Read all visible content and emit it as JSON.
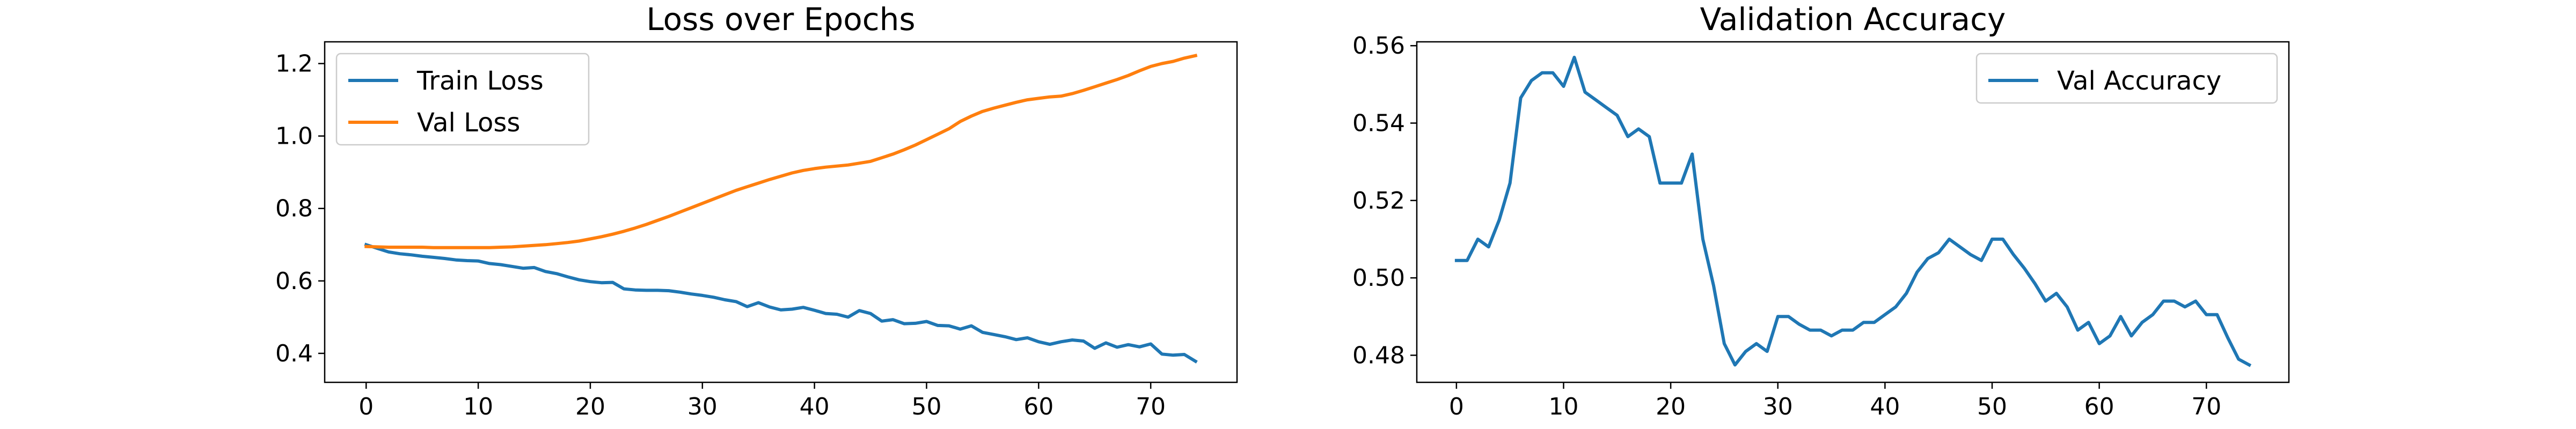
{
  "chart_data": [
    {
      "type": "line",
      "title": "Loss over Epochs",
      "xlabel": "",
      "ylabel": "",
      "xlim": [
        -3.7,
        77.7
      ],
      "ylim": [
        0.32,
        1.26
      ],
      "xticks": [
        0,
        10,
        20,
        30,
        40,
        50,
        60,
        70
      ],
      "yticks": [
        0.4,
        0.6,
        0.8,
        1.0,
        1.2
      ],
      "ytick_labels": [
        "0.4",
        "0.6",
        "0.8",
        "1.0",
        "1.2"
      ],
      "grid": false,
      "legend_position": "upper-left",
      "series": [
        {
          "name": "Train Loss",
          "color": "#1f77b4",
          "x": [
            0,
            1,
            2,
            3,
            4,
            5,
            6,
            7,
            8,
            9,
            10,
            11,
            12,
            13,
            14,
            15,
            16,
            17,
            18,
            19,
            20,
            21,
            22,
            23,
            24,
            25,
            26,
            27,
            28,
            29,
            30,
            31,
            32,
            33,
            34,
            35,
            36,
            37,
            38,
            39,
            40,
            41,
            42,
            43,
            44,
            45,
            46,
            47,
            48,
            49,
            50,
            51,
            52,
            53,
            54,
            55,
            56,
            57,
            58,
            59,
            60,
            61,
            62,
            63,
            64,
            65,
            66,
            67,
            68,
            69,
            70,
            71,
            72,
            73,
            74
          ],
          "values": [
            0.7,
            0.69,
            0.68,
            0.675,
            0.672,
            0.668,
            0.665,
            0.662,
            0.658,
            0.656,
            0.655,
            0.648,
            0.645,
            0.64,
            0.635,
            0.637,
            0.626,
            0.62,
            0.611,
            0.603,
            0.598,
            0.595,
            0.596,
            0.578,
            0.575,
            0.574,
            0.574,
            0.573,
            0.569,
            0.564,
            0.56,
            0.555,
            0.548,
            0.543,
            0.529,
            0.54,
            0.528,
            0.52,
            0.522,
            0.527,
            0.519,
            0.51,
            0.508,
            0.5,
            0.518,
            0.51,
            0.489,
            0.493,
            0.482,
            0.483,
            0.488,
            0.477,
            0.476,
            0.467,
            0.476,
            0.458,
            0.452,
            0.446,
            0.438,
            0.443,
            0.432,
            0.425,
            0.432,
            0.437,
            0.434,
            0.414,
            0.429,
            0.417,
            0.424,
            0.418,
            0.426,
            0.398,
            0.395,
            0.397,
            0.378
          ]
        },
        {
          "name": "Val Loss",
          "color": "#ff7f0e",
          "x": [
            0,
            1,
            2,
            3,
            4,
            5,
            6,
            7,
            8,
            9,
            10,
            11,
            12,
            13,
            14,
            15,
            16,
            17,
            18,
            19,
            20,
            21,
            22,
            23,
            24,
            25,
            26,
            27,
            28,
            29,
            30,
            31,
            32,
            33,
            34,
            35,
            36,
            37,
            38,
            39,
            40,
            41,
            42,
            43,
            44,
            45,
            46,
            47,
            48,
            49,
            50,
            51,
            52,
            53,
            54,
            55,
            56,
            57,
            58,
            59,
            60,
            61,
            62,
            63,
            64,
            65,
            66,
            67,
            68,
            69,
            70,
            71,
            72,
            73,
            74
          ],
          "values": [
            0.695,
            0.694,
            0.693,
            0.693,
            0.693,
            0.693,
            0.692,
            0.692,
            0.692,
            0.692,
            0.692,
            0.692,
            0.693,
            0.694,
            0.696,
            0.698,
            0.7,
            0.703,
            0.706,
            0.71,
            0.716,
            0.722,
            0.729,
            0.737,
            0.746,
            0.756,
            0.767,
            0.778,
            0.79,
            0.802,
            0.814,
            0.826,
            0.838,
            0.85,
            0.86,
            0.87,
            0.88,
            0.889,
            0.898,
            0.905,
            0.91,
            0.914,
            0.917,
            0.92,
            0.925,
            0.93,
            0.94,
            0.95,
            0.962,
            0.975,
            0.99,
            1.005,
            1.02,
            1.04,
            1.055,
            1.068,
            1.077,
            1.085,
            1.093,
            1.1,
            1.104,
            1.108,
            1.11,
            1.117,
            1.126,
            1.136,
            1.146,
            1.156,
            1.167,
            1.18,
            1.192,
            1.2,
            1.206,
            1.215,
            1.222
          ]
        }
      ]
    },
    {
      "type": "line",
      "title": "Validation Accuracy",
      "xlabel": "",
      "ylabel": "",
      "xlim": [
        -3.7,
        77.7
      ],
      "ylim": [
        0.473,
        0.561
      ],
      "xticks": [
        0,
        10,
        20,
        30,
        40,
        50,
        60,
        70
      ],
      "yticks": [
        0.48,
        0.5,
        0.52,
        0.54,
        0.56
      ],
      "ytick_labels": [
        "0.48",
        "0.50",
        "0.52",
        "0.54",
        "0.56"
      ],
      "grid": false,
      "legend_position": "upper-right",
      "series": [
        {
          "name": "Val Accuracy",
          "color": "#1f77b4",
          "x": [
            0,
            1,
            2,
            3,
            4,
            5,
            6,
            7,
            8,
            9,
            10,
            11,
            12,
            13,
            14,
            15,
            16,
            17,
            18,
            19,
            20,
            21,
            22,
            23,
            24,
            25,
            26,
            27,
            28,
            29,
            30,
            31,
            32,
            33,
            34,
            35,
            36,
            37,
            38,
            39,
            40,
            41,
            42,
            43,
            44,
            45,
            46,
            47,
            48,
            49,
            50,
            51,
            52,
            53,
            54,
            55,
            56,
            57,
            58,
            59,
            60,
            61,
            62,
            63,
            64,
            65,
            66,
            67,
            68,
            69,
            70,
            71,
            72,
            73,
            74
          ],
          "values": [
            0.5045,
            0.5045,
            0.51,
            0.508,
            0.515,
            0.5245,
            0.5465,
            0.551,
            0.553,
            0.553,
            0.5495,
            0.557,
            0.548,
            0.546,
            0.544,
            0.542,
            0.5365,
            0.5385,
            0.5365,
            0.5245,
            0.5245,
            0.5245,
            0.532,
            0.51,
            0.498,
            0.483,
            0.4775,
            0.481,
            0.483,
            0.481,
            0.49,
            0.49,
            0.488,
            0.4865,
            0.4865,
            0.485,
            0.4865,
            0.4865,
            0.4885,
            0.4885,
            0.4905,
            0.4925,
            0.496,
            0.5015,
            0.505,
            0.5065,
            0.51,
            0.508,
            0.506,
            0.5045,
            0.51,
            0.51,
            0.506,
            0.5025,
            0.4985,
            0.494,
            0.496,
            0.4925,
            0.4865,
            0.4885,
            0.483,
            0.485,
            0.49,
            0.485,
            0.4885,
            0.4905,
            0.494,
            0.494,
            0.4925,
            0.494,
            0.4905,
            0.4905,
            0.4845,
            0.479,
            0.4775
          ]
        }
      ]
    }
  ]
}
